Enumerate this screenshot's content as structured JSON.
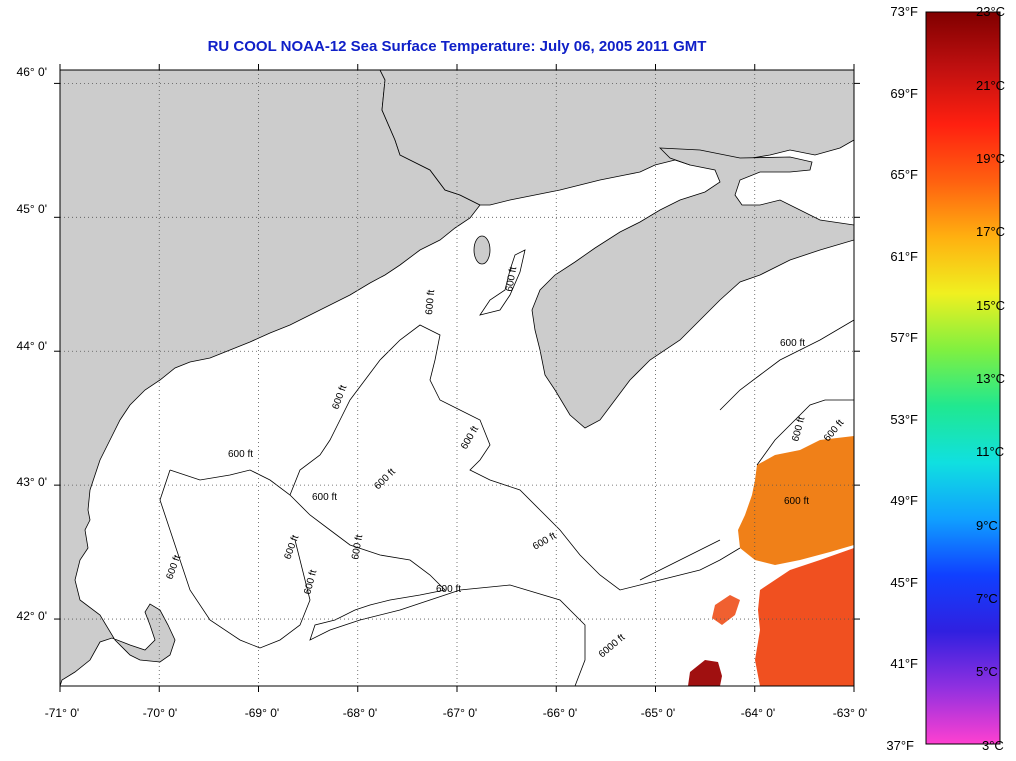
{
  "title": "RU COOL  NOAA-12  Sea Surface Temperature:  July 06, 2005 2011 GMT",
  "map": {
    "lon_range": [
      -71,
      -63
    ],
    "lat_range": [
      41.5,
      46.1
    ],
    "lat_labels": [
      "46° 0'",
      "45° 0'",
      "44° 0'",
      "43° 0'",
      "42° 0'"
    ],
    "lon_labels": [
      "-71° 0'",
      "-70° 0'",
      "-69° 0'",
      "-68° 0'",
      "-67° 0'",
      "-66° 0'",
      "-65° 0'",
      "-64° 0'",
      "-63° 0'"
    ],
    "contour_label": "600 ft",
    "deep_contour_label": "6000 ft",
    "land_color": "#cccccc",
    "ocean_color": "#ffffff",
    "grid": true
  },
  "colorbar": {
    "fahrenheit_labels": [
      "73°F",
      "69°F",
      "65°F",
      "61°F",
      "57°F",
      "53°F",
      "49°F",
      "45°F",
      "41°F",
      "37°F"
    ],
    "celsius_labels": [
      "23°C",
      "21°C",
      "19°C",
      "17°C",
      "15°C",
      "13°C",
      "11°C",
      "9°C",
      "7°C",
      "5°C",
      "3°C"
    ],
    "range_c": [
      3,
      23
    ],
    "stops": [
      "#ff40d0",
      "#9030e0",
      "#3020e0",
      "#1040ff",
      "#10a0ff",
      "#10e0e0",
      "#20e890",
      "#80f040",
      "#f0f020",
      "#ffb010",
      "#ff6010",
      "#ff2010",
      "#c01010",
      "#800000"
    ]
  }
}
